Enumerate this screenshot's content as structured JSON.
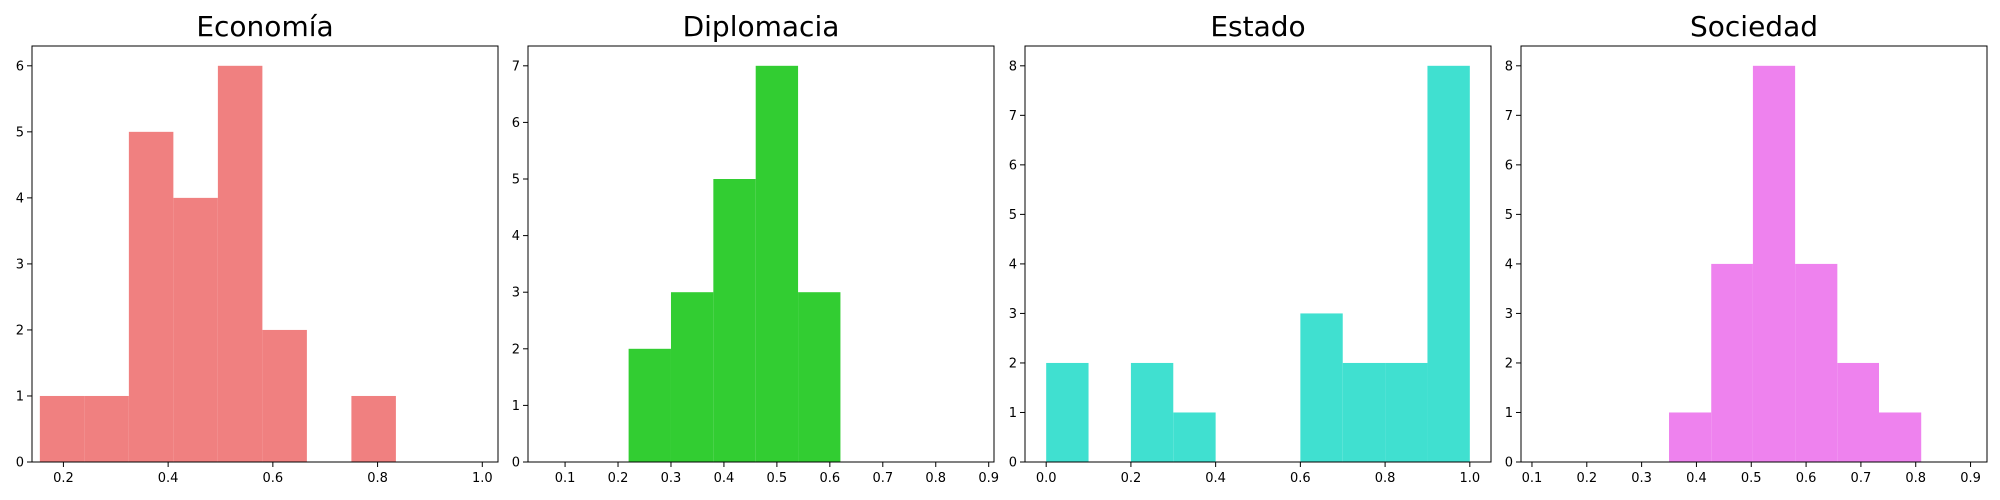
{
  "chart_data": [
    {
      "type": "bar",
      "title": "Economía",
      "color": "#f08080",
      "bins": [
        {
          "x0": 0.155,
          "x1": 0.24,
          "count": 1
        },
        {
          "x0": 0.24,
          "x1": 0.325,
          "count": 1
        },
        {
          "x0": 0.325,
          "x1": 0.41,
          "count": 5
        },
        {
          "x0": 0.41,
          "x1": 0.495,
          "count": 4
        },
        {
          "x0": 0.495,
          "x1": 0.58,
          "count": 6
        },
        {
          "x0": 0.58,
          "x1": 0.665,
          "count": 2
        },
        {
          "x0": 0.665,
          "x1": 0.75,
          "count": 0
        },
        {
          "x0": 0.75,
          "x1": 0.835,
          "count": 1
        }
      ],
      "xlim": [
        0.14,
        1.03
      ],
      "ylim": [
        0,
        6.3
      ],
      "xticks": [
        0.2,
        0.4,
        0.6,
        0.8,
        1.0
      ],
      "xtick_labels": [
        "0.2",
        "0.4",
        "0.6",
        "0.8",
        "1.0"
      ],
      "yticks": [
        0,
        1,
        2,
        3,
        4,
        5,
        6
      ],
      "ytick_labels": [
        "0",
        "1",
        "2",
        "3",
        "4",
        "5",
        "6"
      ]
    },
    {
      "type": "bar",
      "title": "Diplomacia",
      "color": "#32cd32",
      "bins": [
        {
          "x0": 0.22,
          "x1": 0.3,
          "count": 2
        },
        {
          "x0": 0.3,
          "x1": 0.38,
          "count": 3
        },
        {
          "x0": 0.38,
          "x1": 0.46,
          "count": 5
        },
        {
          "x0": 0.46,
          "x1": 0.54,
          "count": 7
        },
        {
          "x0": 0.54,
          "x1": 0.62,
          "count": 3
        }
      ],
      "xlim": [
        0.03,
        0.91
      ],
      "ylim": [
        0,
        7.35
      ],
      "xticks": [
        0.1,
        0.2,
        0.3,
        0.4,
        0.5,
        0.6,
        0.7,
        0.8,
        0.9
      ],
      "xtick_labels": [
        "0.1",
        "0.2",
        "0.3",
        "0.4",
        "0.5",
        "0.6",
        "0.7",
        "0.8",
        "0.9"
      ],
      "yticks": [
        0,
        1,
        2,
        3,
        4,
        5,
        6,
        7
      ],
      "ytick_labels": [
        "0",
        "1",
        "2",
        "3",
        "4",
        "5",
        "6",
        "7"
      ]
    },
    {
      "type": "bar",
      "title": "Estado",
      "color": "#40e0d0",
      "bins": [
        {
          "x0": 0.0,
          "x1": 0.1,
          "count": 2
        },
        {
          "x0": 0.1,
          "x1": 0.2,
          "count": 0
        },
        {
          "x0": 0.2,
          "x1": 0.3,
          "count": 2
        },
        {
          "x0": 0.3,
          "x1": 0.4,
          "count": 1
        },
        {
          "x0": 0.4,
          "x1": 0.5,
          "count": 0
        },
        {
          "x0": 0.5,
          "x1": 0.6,
          "count": 0
        },
        {
          "x0": 0.6,
          "x1": 0.7,
          "count": 3
        },
        {
          "x0": 0.7,
          "x1": 0.8,
          "count": 2
        },
        {
          "x0": 0.8,
          "x1": 0.9,
          "count": 2
        },
        {
          "x0": 0.9,
          "x1": 1.0,
          "count": 8
        }
      ],
      "xlim": [
        -0.05,
        1.05
      ],
      "ylim": [
        0,
        8.4
      ],
      "xticks": [
        0.0,
        0.2,
        0.4,
        0.6,
        0.8,
        1.0
      ],
      "xtick_labels": [
        "0.0",
        "0.2",
        "0.4",
        "0.6",
        "0.8",
        "1.0"
      ],
      "yticks": [
        0,
        1,
        2,
        3,
        4,
        5,
        6,
        7,
        8
      ],
      "ytick_labels": [
        "0",
        "1",
        "2",
        "3",
        "4",
        "5",
        "6",
        "7",
        "8"
      ]
    },
    {
      "type": "bar",
      "title": "Sociedad",
      "color": "#ee82ee",
      "bins": [
        {
          "x0": 0.35,
          "x1": 0.427,
          "count": 1
        },
        {
          "x0": 0.427,
          "x1": 0.503,
          "count": 4
        },
        {
          "x0": 0.503,
          "x1": 0.58,
          "count": 8
        },
        {
          "x0": 0.58,
          "x1": 0.657,
          "count": 4
        },
        {
          "x0": 0.657,
          "x1": 0.733,
          "count": 2
        },
        {
          "x0": 0.733,
          "x1": 0.81,
          "count": 1
        }
      ],
      "xlim": [
        0.08,
        0.93
      ],
      "ylim": [
        0,
        8.4
      ],
      "xticks": [
        0.1,
        0.2,
        0.3,
        0.4,
        0.5,
        0.6,
        0.7,
        0.8,
        0.9
      ],
      "xtick_labels": [
        "0.1",
        "0.2",
        "0.3",
        "0.4",
        "0.5",
        "0.6",
        "0.7",
        "0.8",
        "0.9"
      ],
      "yticks": [
        0,
        1,
        2,
        3,
        4,
        5,
        6,
        7,
        8
      ],
      "ytick_labels": [
        "0",
        "1",
        "2",
        "3",
        "4",
        "5",
        "6",
        "7",
        "8"
      ]
    }
  ]
}
